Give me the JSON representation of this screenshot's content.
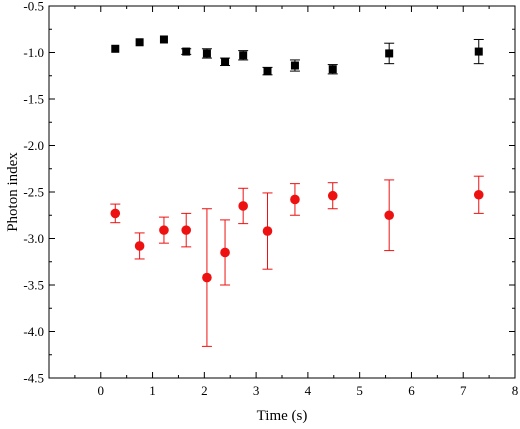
{
  "chart_data": {
    "type": "scatter",
    "title": "",
    "xlabel": "Time (s)",
    "ylabel": "Photon index",
    "xlim": [
      -1,
      8
    ],
    "ylim": [
      -4.5,
      -0.5
    ],
    "x_ticks": [
      0,
      1,
      2,
      3,
      4,
      5,
      6,
      7,
      8
    ],
    "y_ticks": [
      -0.5,
      -1.0,
      -1.5,
      -2.0,
      -2.5,
      -3.0,
      -3.5,
      -4.0,
      -4.5
    ],
    "x_tick_labels": [
      "0",
      "1",
      "2",
      "3",
      "4",
      "5",
      "6",
      "7",
      "8"
    ],
    "y_tick_labels": [
      "-0.5",
      "-1.0",
      "-1.5",
      "-2.0",
      "-2.5",
      "-3.0",
      "-3.5",
      "-4.0",
      "-4.5"
    ],
    "grid": false,
    "legend": "none",
    "series": [
      {
        "marker": "square",
        "color": "#000000",
        "points": [
          {
            "x": 0.28,
            "y": -0.96,
            "err": 0.0
          },
          {
            "x": 0.75,
            "y": -0.89,
            "err": 0.0
          },
          {
            "x": 1.22,
            "y": -0.86,
            "err": 0.0
          },
          {
            "x": 1.65,
            "y": -0.99,
            "err": 0.03
          },
          {
            "x": 2.05,
            "y": -1.01,
            "err": 0.05
          },
          {
            "x": 2.4,
            "y": -1.1,
            "err": 0.04
          },
          {
            "x": 2.75,
            "y": -1.03,
            "err": 0.05
          },
          {
            "x": 3.22,
            "y": -1.2,
            "err": 0.04
          },
          {
            "x": 3.75,
            "y": -1.14,
            "err": 0.06
          },
          {
            "x": 4.48,
            "y": -1.18,
            "err": 0.05
          },
          {
            "x": 5.57,
            "y": -1.01,
            "err": 0.11
          },
          {
            "x": 7.3,
            "y": -0.99,
            "err": 0.13
          }
        ]
      },
      {
        "marker": "circle",
        "color": "#ee1111",
        "points": [
          {
            "x": 0.28,
            "y": -2.73,
            "err": 0.1
          },
          {
            "x": 0.75,
            "y": -3.08,
            "err": 0.14
          },
          {
            "x": 1.22,
            "y": -2.91,
            "err": 0.14
          },
          {
            "x": 1.65,
            "y": -2.91,
            "err": 0.18
          },
          {
            "x": 2.05,
            "y": -3.42,
            "err": 0.74
          },
          {
            "x": 2.4,
            "y": -3.15,
            "err": 0.35
          },
          {
            "x": 2.75,
            "y": -2.65,
            "err": 0.19
          },
          {
            "x": 3.22,
            "y": -2.92,
            "err": 0.41
          },
          {
            "x": 3.75,
            "y": -2.58,
            "err": 0.17
          },
          {
            "x": 4.48,
            "y": -2.54,
            "err": 0.14
          },
          {
            "x": 5.57,
            "y": -2.75,
            "err": 0.38
          },
          {
            "x": 7.3,
            "y": -2.53,
            "err": 0.2
          }
        ]
      }
    ]
  }
}
